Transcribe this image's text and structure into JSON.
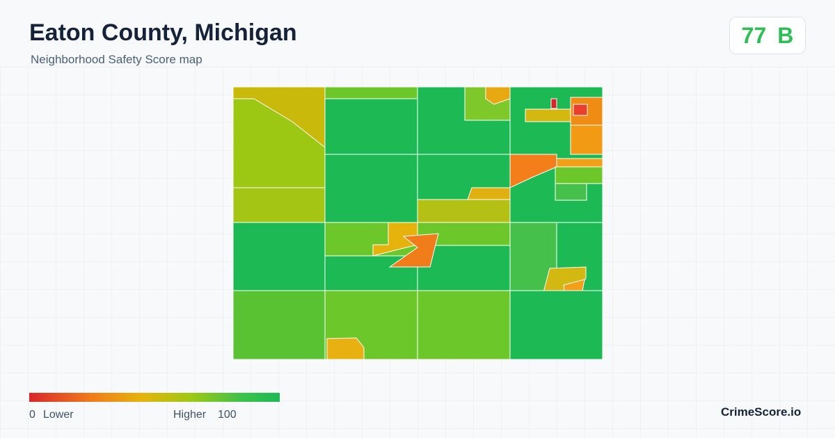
{
  "header": {
    "title": "Eaton County, Michigan",
    "subtitle": "Neighborhood Safety Score map"
  },
  "score": {
    "value": "77",
    "grade": "B"
  },
  "legend": {
    "min": "0",
    "min_label": "Lower",
    "max_label": "Higher",
    "max": "100"
  },
  "brand": "CrimeScore.io"
}
